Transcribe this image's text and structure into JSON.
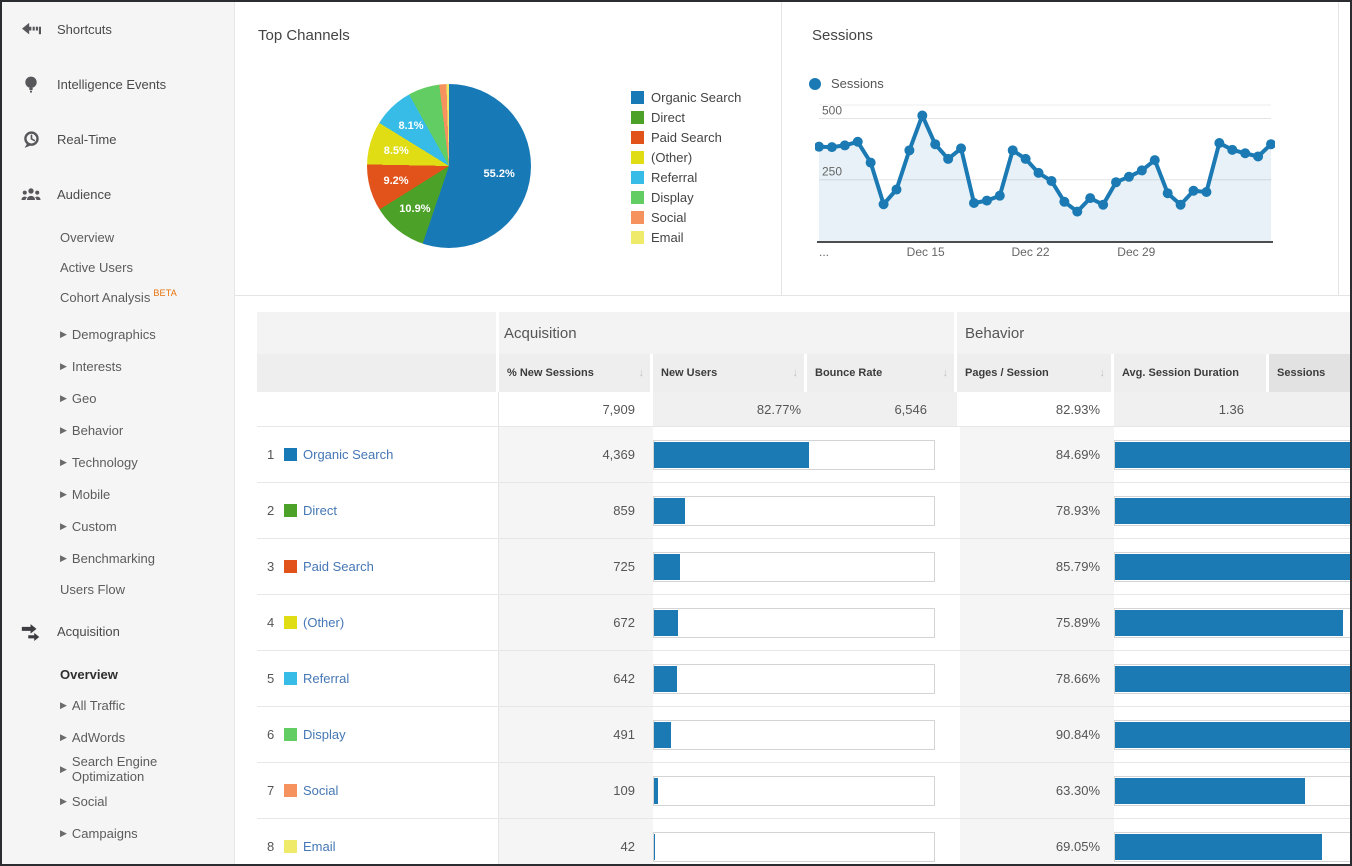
{
  "accent_color": "#1b7ab3",
  "sidebar": {
    "items": [
      {
        "type": "top",
        "icon": "shortcuts-icon",
        "label": "Shortcuts"
      },
      {
        "type": "top",
        "icon": "intelligence-icon",
        "label": "Intelligence Events"
      },
      {
        "type": "top",
        "icon": "realtime-icon",
        "label": "Real-Time"
      },
      {
        "type": "top",
        "icon": "audience-icon",
        "label": "Audience"
      },
      {
        "type": "sub",
        "label": "Overview"
      },
      {
        "type": "sub",
        "label": "Active Users"
      },
      {
        "type": "sub",
        "label": "Cohort Analysis",
        "badge": "BETA"
      },
      {
        "type": "sub-arrow",
        "gap": true,
        "label": "Demographics"
      },
      {
        "type": "sub-arrow",
        "label": "Interests"
      },
      {
        "type": "sub-arrow",
        "label": "Geo"
      },
      {
        "type": "sub-arrow",
        "label": "Behavior"
      },
      {
        "type": "sub-arrow",
        "label": "Technology"
      },
      {
        "type": "sub-arrow",
        "label": "Mobile"
      },
      {
        "type": "sub-arrow",
        "label": "Custom"
      },
      {
        "type": "sub-arrow",
        "label": "Benchmarking"
      },
      {
        "type": "sub",
        "label": "Users Flow"
      },
      {
        "type": "top",
        "icon": "acquisition-icon",
        "label": "Acquisition"
      },
      {
        "type": "sub",
        "label": "Overview",
        "active": true
      },
      {
        "type": "sub-arrow",
        "label": "All Traffic"
      },
      {
        "type": "sub-arrow",
        "label": "AdWords"
      },
      {
        "type": "sub-arrow",
        "label": "Search Engine Optimization"
      },
      {
        "type": "sub-arrow",
        "label": "Social"
      },
      {
        "type": "sub-arrow",
        "label": "Campaigns"
      }
    ]
  },
  "chart_data": [
    {
      "type": "pie",
      "title": "Top Channels",
      "labels": [
        "Organic Search",
        "Direct",
        "Paid Search",
        "(Other)",
        "Referral",
        "Display",
        "Social",
        "Email"
      ],
      "values": [
        55.2,
        10.9,
        9.2,
        8.5,
        8.1,
        6.2,
        1.4,
        0.5
      ],
      "colors": [
        "#1879b7",
        "#4ca228",
        "#e2531b",
        "#e0dd14",
        "#36bce6",
        "#62cd62",
        "#f6925d",
        "#f0ea6a"
      ],
      "slice_labels_shown": [
        "55.2%",
        "10.9%",
        "9.2%",
        "8.5%"
      ],
      "legend_position": "right"
    },
    {
      "type": "line",
      "title": "Sessions",
      "series": [
        {
          "name": "Sessions",
          "values": [
            385,
            383,
            390,
            405,
            320,
            150,
            210,
            370,
            512,
            395,
            335,
            378,
            155,
            165,
            185,
            370,
            335,
            278,
            245,
            160,
            120,
            175,
            148,
            240,
            262,
            288,
            330,
            195,
            148,
            205,
            200,
            400,
            372,
            358,
            345,
            395
          ]
        }
      ],
      "color": "#1b7ab3",
      "area_fill": true,
      "y_ticks": [
        250,
        500
      ],
      "ylim": [
        0,
        555
      ],
      "x_tick_labels": [
        "...",
        "Dec 15",
        "Dec 22",
        "Dec 29"
      ],
      "x_tick_positions_pct": [
        0,
        23.6,
        46.8,
        70.2
      ],
      "grid": true,
      "legend_position": "top-left"
    }
  ],
  "table": {
    "group_headers": [
      "Acquisition",
      "Behavior"
    ],
    "columns": [
      {
        "label": "Sessions",
        "sorted": true
      },
      {
        "label": "% New Sessions",
        "sorted": false
      },
      {
        "label": "New Users",
        "sorted": false
      },
      {
        "label": "Bounce Rate",
        "sorted": false
      },
      {
        "label": "Pages / Session",
        "sorted": false
      },
      {
        "label": "Avg. Session Duration",
        "sorted": false
      }
    ],
    "totals": {
      "sessions": "7,909",
      "pct_new_sessions": "82.77%",
      "new_users": "6,546",
      "bounce_rate": "82.93%",
      "pages_per_session": "1.36"
    },
    "rows": [
      {
        "rank": 1,
        "channel": "Organic Search",
        "color": "#1879b7",
        "sessions": "4,369",
        "sessions_pct": 55.2,
        "bounce_rate": "84.69%",
        "bounce_pct": 84.69
      },
      {
        "rank": 2,
        "channel": "Direct",
        "color": "#4ca228",
        "sessions": "859",
        "sessions_pct": 10.9,
        "bounce_rate": "78.93%",
        "bounce_pct": 78.93
      },
      {
        "rank": 3,
        "channel": "Paid Search",
        "color": "#e2531b",
        "sessions": "725",
        "sessions_pct": 9.2,
        "bounce_rate": "85.79%",
        "bounce_pct": 85.79
      },
      {
        "rank": 4,
        "channel": "(Other)",
        "color": "#e0dd14",
        "sessions": "672",
        "sessions_pct": 8.5,
        "bounce_rate": "75.89%",
        "bounce_pct": 75.89
      },
      {
        "rank": 5,
        "channel": "Referral",
        "color": "#36bce6",
        "sessions": "642",
        "sessions_pct": 8.1,
        "bounce_rate": "78.66%",
        "bounce_pct": 78.66
      },
      {
        "rank": 6,
        "channel": "Display",
        "color": "#62cd62",
        "sessions": "491",
        "sessions_pct": 6.2,
        "bounce_rate": "90.84%",
        "bounce_pct": 90.84
      },
      {
        "rank": 7,
        "channel": "Social",
        "color": "#f6925d",
        "sessions": "109",
        "sessions_pct": 1.4,
        "bounce_rate": "63.30%",
        "bounce_pct": 63.3
      },
      {
        "rank": 8,
        "channel": "Email",
        "color": "#f0ea6a",
        "sessions": "42",
        "sessions_pct": 0.5,
        "bounce_rate": "69.05%",
        "bounce_pct": 69.05
      }
    ]
  }
}
